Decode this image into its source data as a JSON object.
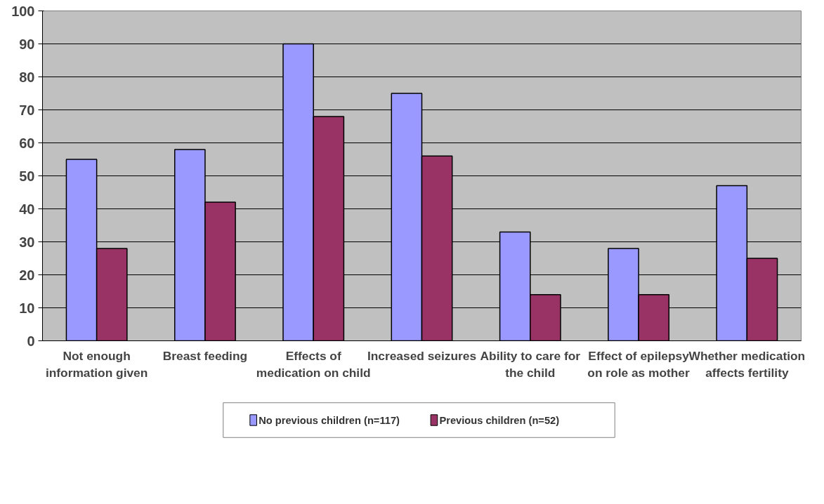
{
  "chart_data": {
    "type": "bar",
    "categories": [
      "Not enough information given",
      "Breast feeding",
      "Effects of medication on child",
      "Increased seizures",
      "Ability to care for the child",
      "Effect of epilepsy on role as mother",
      "Whether medication affects fertility"
    ],
    "series": [
      {
        "name": "No previous children (n=117)",
        "color": "#9999ff",
        "values": [
          55,
          58,
          90,
          75,
          33,
          28,
          47
        ]
      },
      {
        "name": "Previous children (n=52)",
        "color": "#993366",
        "values": [
          28,
          42,
          68,
          56,
          14,
          14,
          25
        ]
      }
    ],
    "ylim": [
      0,
      100
    ],
    "yticks": [
      0,
      10,
      20,
      30,
      40,
      50,
      60,
      70,
      80,
      90,
      100
    ],
    "grid": "y",
    "legend": "bottom"
  }
}
